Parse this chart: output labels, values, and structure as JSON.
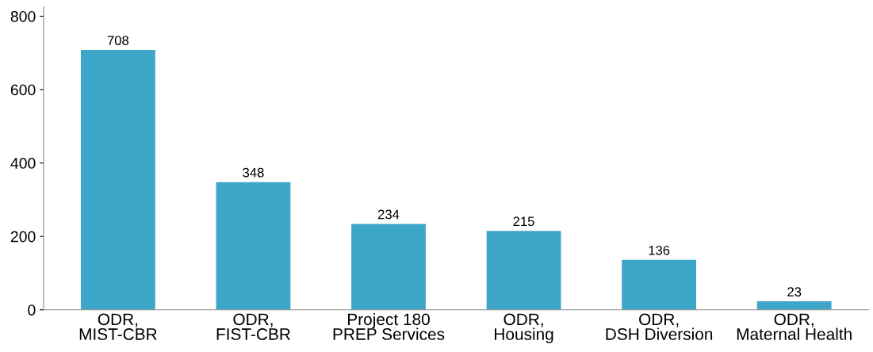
{
  "chart_data": {
    "type": "bar",
    "categories": [
      "ODR,\nMIST-CBR",
      "ODR,\nFIST-CBR",
      "Project 180\nPREP Services",
      "ODR,\nHousing",
      "ODR,\nDSH Diversion",
      "ODR,\nMaternal Health"
    ],
    "values": [
      708,
      348,
      234,
      215,
      136,
      23
    ],
    "color": "#3ea6c9",
    "ylim": [
      0,
      825
    ],
    "yticks": [
      0,
      200,
      400,
      600,
      800
    ],
    "grid": false,
    "data_labels": true
  }
}
